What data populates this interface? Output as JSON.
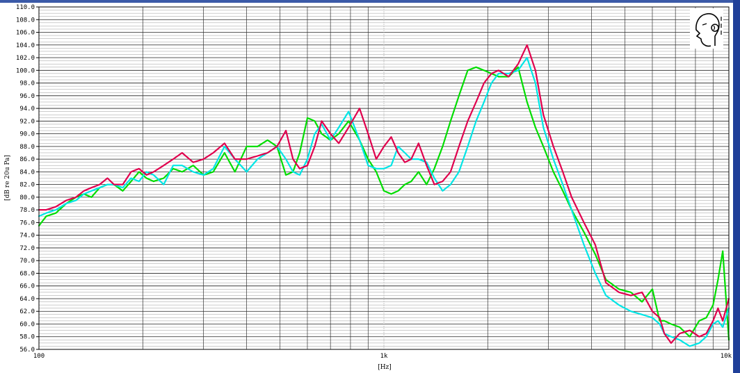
{
  "chart_data": {
    "type": "line",
    "title": "",
    "xlabel": "[Hz]",
    "ylabel": "[dB re 20u Pa]",
    "xscale": "log",
    "xlim": [
      100,
      10000
    ],
    "ylim": [
      56,
      110
    ],
    "grid": true,
    "legend": "none",
    "y_tick_labels": [
      "56.0",
      "58.0",
      "60.0",
      "62.0",
      "64.0",
      "66.0",
      "68.0",
      "70.0",
      "72.0",
      "74.0",
      "76.0",
      "78.0",
      "80.0",
      "82.0",
      "84.0",
      "86.0",
      "88.0",
      "90.0",
      "92.0",
      "94.0",
      "96.0",
      "98.0",
      "100.0",
      "102.0",
      "104.0",
      "106.0",
      "108.0",
      "110.0"
    ],
    "x_tick_labels": [
      {
        "value": 100,
        "label": "100"
      },
      {
        "value": 1000,
        "label": "1k"
      },
      {
        "value": 10000,
        "label": "10k"
      }
    ],
    "series": [
      {
        "color": "#00dd00",
        "x": [
          100,
          105,
          112,
          120,
          128,
          135,
          142,
          150,
          158,
          165,
          175,
          185,
          195,
          205,
          215,
          230,
          245,
          260,
          280,
          300,
          320,
          345,
          370,
          400,
          430,
          460,
          490,
          520,
          545,
          570,
          600,
          630,
          660,
          700,
          740,
          790,
          850,
          900,
          950,
          1000,
          1050,
          1100,
          1150,
          1200,
          1260,
          1330,
          1400,
          1480,
          1560,
          1650,
          1750,
          1850,
          1950,
          2050,
          2150,
          2300,
          2450,
          2600,
          2750,
          2900,
          3100,
          3300,
          3500,
          3800,
          4100,
          4400,
          4800,
          5200,
          5600,
          6000,
          6300,
          6500,
          6800,
          7200,
          7700,
          8200,
          8600,
          9000,
          9300,
          9600,
          10000
        ],
        "y": [
          75.5,
          77,
          77.5,
          79,
          80,
          80.5,
          80,
          81.5,
          82,
          82,
          81,
          82.5,
          84,
          83,
          82.5,
          83,
          84.5,
          84,
          85,
          83.5,
          84,
          87,
          84,
          88,
          88,
          89,
          88,
          83.5,
          84,
          87,
          92.5,
          92,
          90,
          89,
          90,
          92,
          89,
          86,
          84,
          81,
          80.5,
          81,
          82,
          82.5,
          84,
          82,
          84.5,
          88,
          92,
          96,
          100,
          100.5,
          100,
          99.5,
          99,
          99,
          100.5,
          95,
          91,
          88,
          84,
          81,
          78,
          74.5,
          71,
          67,
          65.5,
          65,
          63.5,
          65.5,
          60.5,
          60.5,
          60,
          59.5,
          58,
          60.5,
          61,
          63,
          67,
          71.5,
          57.5
        ]
      },
      {
        "color": "#00e5e5",
        "x": [
          100,
          105,
          112,
          120,
          128,
          135,
          142,
          150,
          158,
          165,
          175,
          185,
          195,
          205,
          215,
          230,
          245,
          260,
          280,
          300,
          320,
          345,
          370,
          400,
          430,
          460,
          490,
          520,
          545,
          570,
          600,
          630,
          660,
          700,
          740,
          790,
          850,
          900,
          950,
          1000,
          1050,
          1100,
          1150,
          1200,
          1260,
          1330,
          1400,
          1480,
          1560,
          1650,
          1750,
          1850,
          1950,
          2050,
          2150,
          2300,
          2450,
          2600,
          2750,
          2900,
          3100,
          3300,
          3500,
          3800,
          4100,
          4400,
          4800,
          5200,
          5600,
          6000,
          6300,
          6500,
          6800,
          7200,
          7700,
          8200,
          8600,
          9000,
          9300,
          9600,
          10000
        ],
        "y": [
          77,
          77.5,
          78,
          79,
          79.5,
          80.5,
          81,
          81.5,
          82,
          82,
          81.5,
          83,
          82.5,
          84,
          83.5,
          82,
          85,
          85,
          84,
          83.5,
          84.5,
          88,
          86,
          84,
          86,
          87,
          88,
          86,
          84,
          83.5,
          86,
          90,
          91.5,
          89,
          91,
          93.5,
          89,
          85,
          84.5,
          84.5,
          85,
          88,
          87,
          86,
          86,
          85.5,
          83,
          81,
          82,
          84,
          88,
          92,
          95,
          98,
          99.5,
          99.5,
          100,
          102,
          98,
          91,
          86,
          82,
          78,
          72.5,
          68,
          64.5,
          63,
          62,
          61.5,
          61,
          60,
          58.5,
          58,
          57.5,
          56.5,
          57,
          58,
          60,
          60.5,
          59.5,
          62.5
        ]
      },
      {
        "color": "#e0004d",
        "x": [
          100,
          105,
          112,
          120,
          128,
          135,
          142,
          150,
          158,
          165,
          175,
          185,
          195,
          205,
          215,
          230,
          245,
          260,
          280,
          300,
          320,
          345,
          370,
          400,
          430,
          460,
          490,
          520,
          545,
          570,
          600,
          630,
          660,
          700,
          740,
          790,
          850,
          900,
          950,
          1000,
          1050,
          1100,
          1150,
          1200,
          1260,
          1330,
          1400,
          1480,
          1560,
          1650,
          1750,
          1850,
          1950,
          2050,
          2150,
          2300,
          2450,
          2600,
          2750,
          2900,
          3100,
          3300,
          3500,
          3800,
          4100,
          4400,
          4800,
          5200,
          5600,
          6000,
          6300,
          6500,
          6800,
          7200,
          7700,
          8200,
          8600,
          9000,
          9300,
          9600,
          10000
        ],
        "y": [
          78,
          78,
          78.5,
          79.5,
          80,
          81,
          81.5,
          82,
          83,
          82,
          82,
          84,
          84.5,
          83.5,
          84,
          85,
          86,
          87,
          85.5,
          86,
          87,
          88.5,
          86,
          86,
          86.5,
          87,
          88,
          90.5,
          86,
          84.5,
          85,
          88,
          92,
          90,
          88.5,
          91,
          94,
          90,
          86,
          88,
          89.5,
          87,
          85.5,
          86,
          88.5,
          85,
          82,
          82.5,
          84,
          88,
          92,
          95,
          98,
          99.5,
          100,
          99,
          101,
          104,
          100,
          93,
          88,
          84,
          80,
          76,
          72.5,
          66.5,
          65,
          64.5,
          65,
          62,
          61,
          58.5,
          57,
          58.5,
          59,
          58,
          58.5,
          60.5,
          62.5,
          60.5,
          64
        ]
      }
    ]
  }
}
